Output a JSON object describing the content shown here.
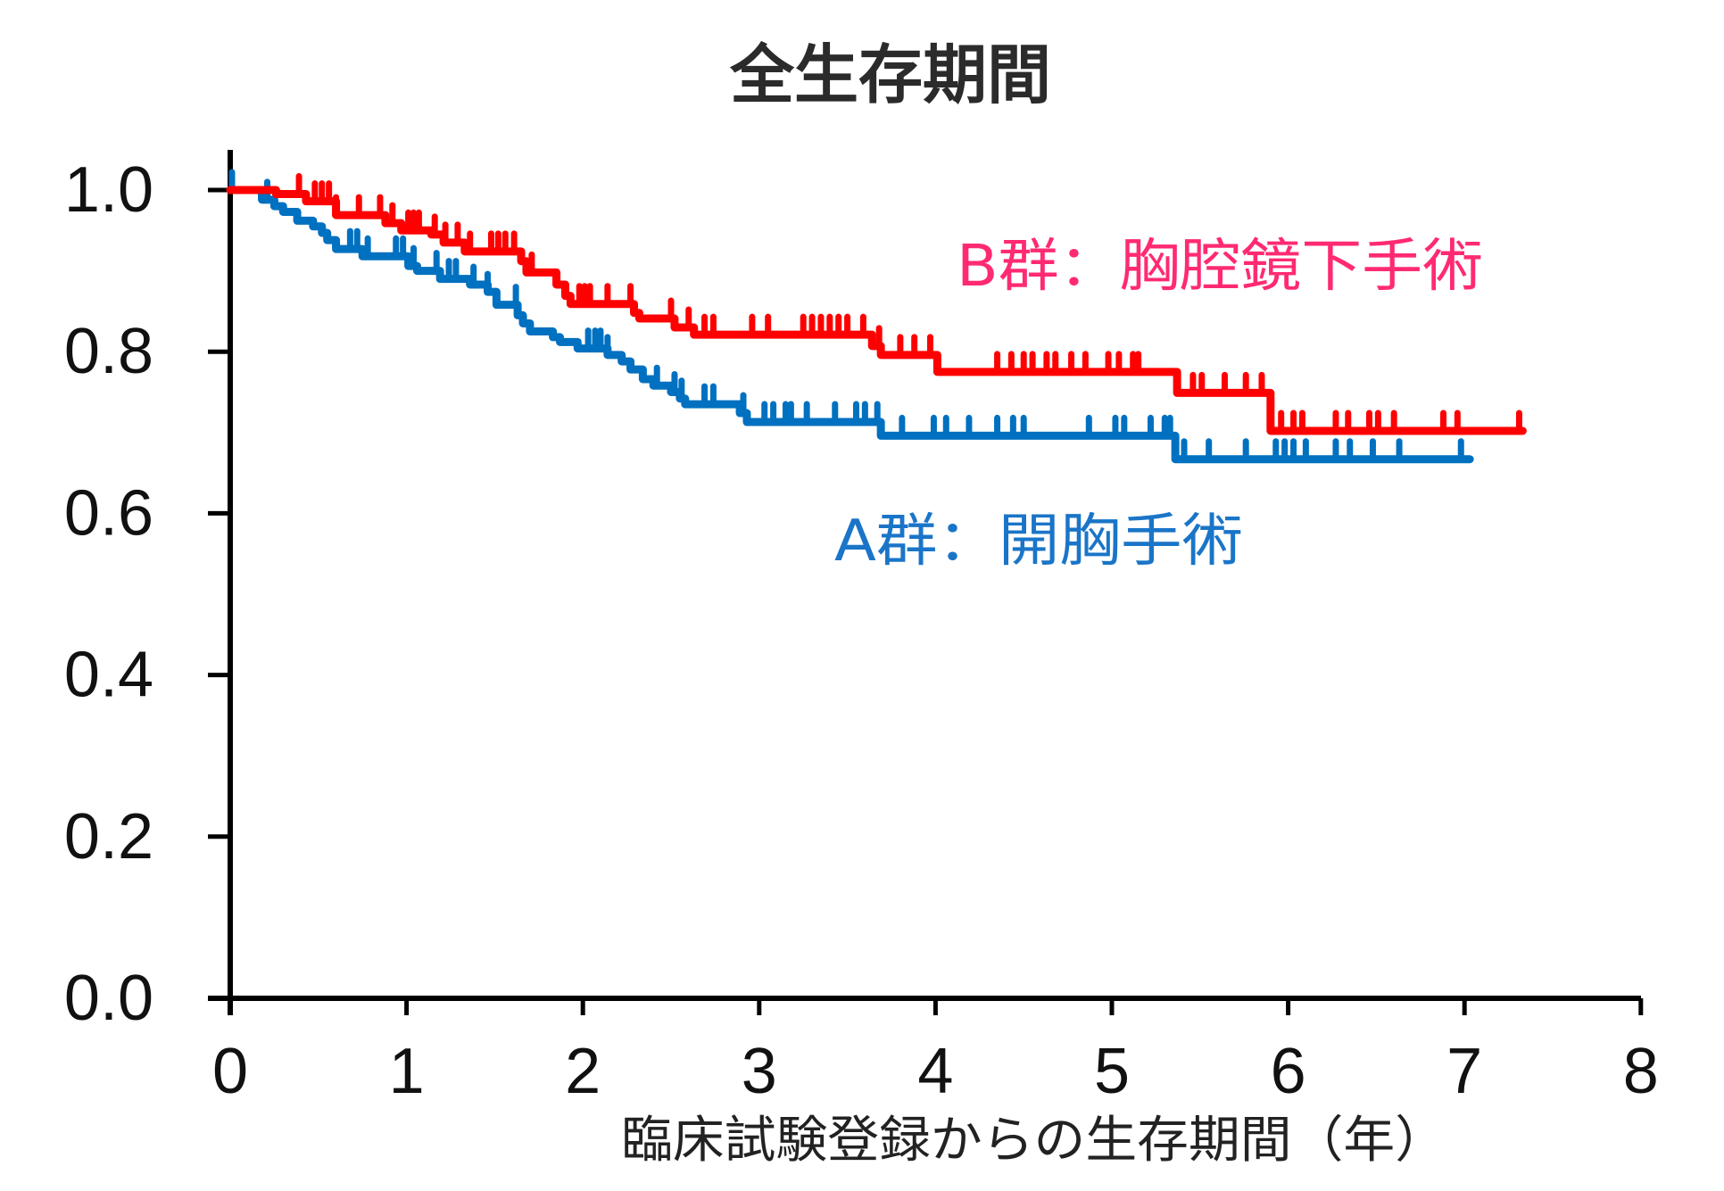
{
  "chart_data": {
    "type": "line",
    "subtype": "kaplan-meier-step",
    "title": "全生存期間",
    "title_color": "#2b2b2b",
    "xlabel": "臨床試験登録からの生存期間（年）",
    "ylabel": "",
    "xlim": [
      0,
      8
    ],
    "ylim": [
      0,
      1.0
    ],
    "xticks": [
      "0",
      "1",
      "2",
      "3",
      "4",
      "5",
      "6",
      "7",
      "8"
    ],
    "yticks": [
      "0.0",
      "0.2",
      "0.4",
      "0.6",
      "0.8",
      "1.0"
    ],
    "grid": false,
    "legend_position": "inline labels next to curves",
    "series": [
      {
        "name": "B群：胸腔鏡下手術",
        "color": "#ff0000",
        "label_color": "#ff2a72",
        "steps": [
          [
            0,
            1.0
          ],
          [
            0.26,
            0.995
          ],
          [
            0.43,
            0.986
          ],
          [
            0.6,
            0.969
          ],
          [
            0.88,
            0.959
          ],
          [
            0.97,
            0.95
          ],
          [
            1.14,
            0.945
          ],
          [
            1.21,
            0.935
          ],
          [
            1.33,
            0.924
          ],
          [
            1.65,
            0.912
          ],
          [
            1.68,
            0.898
          ],
          [
            1.85,
            0.883
          ],
          [
            1.9,
            0.869
          ],
          [
            1.93,
            0.859
          ],
          [
            2.29,
            0.848
          ],
          [
            2.32,
            0.841
          ],
          [
            2.52,
            0.83
          ],
          [
            2.63,
            0.821
          ],
          [
            3.64,
            0.807
          ],
          [
            3.69,
            0.796
          ],
          [
            4.01,
            0.775
          ],
          [
            5.37,
            0.749
          ],
          [
            5.9,
            0.702
          ]
        ],
        "end": 7.33,
        "censored": [
          0.39,
          0.48,
          0.52,
          0.56,
          0.6,
          0.73,
          0.85,
          0.92,
          1.01,
          1.04,
          1.07,
          1.16,
          1.22,
          1.29,
          1.36,
          1.48,
          1.52,
          1.56,
          1.61,
          1.71,
          1.98,
          2.01,
          2.04,
          2.14,
          2.27,
          2.5,
          2.6,
          2.69,
          2.74,
          2.96,
          3.05,
          3.25,
          3.3,
          3.35,
          3.4,
          3.45,
          3.5,
          3.59,
          3.68,
          3.8,
          3.88,
          3.97,
          4.35,
          4.43,
          4.5,
          4.55,
          4.63,
          4.68,
          4.77,
          4.85,
          4.98,
          5.04,
          5.12,
          5.15,
          5.46,
          5.51,
          5.64,
          5.76,
          5.85,
          5.96,
          6.03,
          6.08,
          6.27,
          6.34,
          6.46,
          6.51,
          6.6,
          6.88,
          6.96,
          7.31
        ]
      },
      {
        "name": "A群：開胸手術",
        "color": "#0070c0",
        "label_color": "#1a75c8",
        "steps": [
          [
            0,
            1.0
          ],
          [
            0.18,
            0.988
          ],
          [
            0.25,
            0.98
          ],
          [
            0.3,
            0.973
          ],
          [
            0.38,
            0.962
          ],
          [
            0.47,
            0.955
          ],
          [
            0.52,
            0.947
          ],
          [
            0.55,
            0.938
          ],
          [
            0.6,
            0.927
          ],
          [
            0.75,
            0.918
          ],
          [
            1.01,
            0.906
          ],
          [
            1.06,
            0.9
          ],
          [
            1.19,
            0.89
          ],
          [
            1.36,
            0.883
          ],
          [
            1.46,
            0.874
          ],
          [
            1.51,
            0.858
          ],
          [
            1.63,
            0.845
          ],
          [
            1.66,
            0.835
          ],
          [
            1.7,
            0.825
          ],
          [
            1.83,
            0.818
          ],
          [
            1.87,
            0.812
          ],
          [
            1.97,
            0.804
          ],
          [
            2.14,
            0.796
          ],
          [
            2.22,
            0.788
          ],
          [
            2.27,
            0.778
          ],
          [
            2.34,
            0.766
          ],
          [
            2.4,
            0.758
          ],
          [
            2.5,
            0.75
          ],
          [
            2.55,
            0.742
          ],
          [
            2.58,
            0.735
          ],
          [
            2.89,
            0.724
          ],
          [
            2.93,
            0.713
          ],
          [
            3.69,
            0.696
          ],
          [
            5.36,
            0.667
          ]
        ],
        "end": 7.03,
        "censored": [
          0.01,
          0.21,
          0.68,
          0.72,
          0.78,
          0.94,
          0.98,
          1.04,
          1.17,
          1.24,
          1.28,
          1.38,
          1.46,
          1.62,
          2.03,
          2.07,
          2.1,
          2.14,
          2.42,
          2.52,
          2.56,
          2.69,
          2.74,
          2.91,
          3.03,
          3.08,
          3.15,
          3.18,
          3.27,
          3.43,
          3.55,
          3.6,
          3.67,
          3.81,
          3.99,
          4.06,
          4.19,
          4.35,
          4.44,
          4.5,
          4.87,
          5.02,
          5.07,
          5.22,
          5.3,
          5.33,
          5.41,
          5.55,
          5.76,
          5.93,
          5.98,
          6.03,
          6.1,
          6.27,
          6.35,
          6.48,
          6.63,
          6.98
        ]
      }
    ]
  }
}
